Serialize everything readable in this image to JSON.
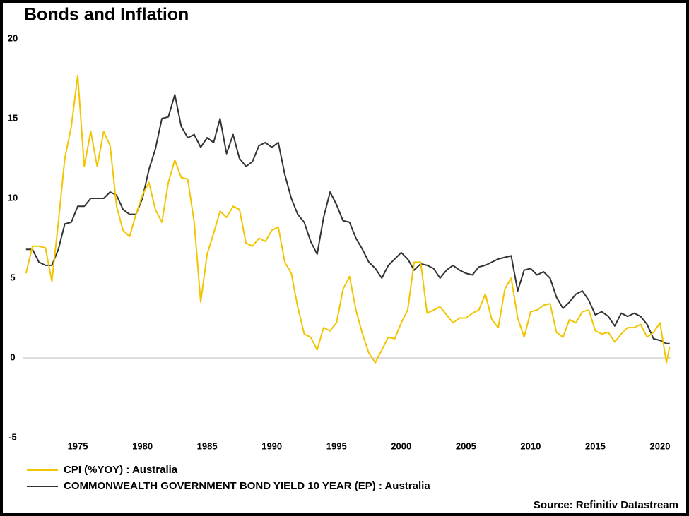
{
  "chart_data": {
    "type": "line",
    "title": "Bonds and Inflation",
    "source": "Source: Refinitiv Datastream",
    "x": [
      1971.0,
      1971.5,
      1972.0,
      1972.5,
      1973.0,
      1973.5,
      1974.0,
      1974.5,
      1975.0,
      1975.5,
      1976.0,
      1976.5,
      1977.0,
      1977.5,
      1978.0,
      1978.5,
      1979.0,
      1979.5,
      1980.0,
      1980.5,
      1981.0,
      1981.5,
      1982.0,
      1982.5,
      1983.0,
      1983.5,
      1984.0,
      1984.5,
      1985.0,
      1985.5,
      1986.0,
      1986.5,
      1987.0,
      1987.5,
      1988.0,
      1988.5,
      1989.0,
      1989.5,
      1990.0,
      1990.5,
      1991.0,
      1991.5,
      1992.0,
      1992.5,
      1993.0,
      1993.5,
      1994.0,
      1994.5,
      1995.0,
      1995.5,
      1996.0,
      1996.5,
      1997.0,
      1997.5,
      1998.0,
      1998.5,
      1999.0,
      1999.5,
      2000.0,
      2000.5,
      2001.0,
      2001.5,
      2002.0,
      2002.5,
      2003.0,
      2003.5,
      2004.0,
      2004.5,
      2005.0,
      2005.5,
      2006.0,
      2006.5,
      2007.0,
      2007.5,
      2008.0,
      2008.5,
      2009.0,
      2009.5,
      2010.0,
      2010.5,
      2011.0,
      2011.5,
      2012.0,
      2012.5,
      2013.0,
      2013.5,
      2014.0,
      2014.5,
      2015.0,
      2015.5,
      2016.0,
      2016.5,
      2017.0,
      2017.5,
      2018.0,
      2018.5,
      2019.0,
      2019.5,
      2020.0,
      2020.5,
      2020.75
    ],
    "series": [
      {
        "name": "CPI (%YOY) : Australia",
        "color": "#f2c500",
        "values": [
          5.3,
          7.0,
          7.0,
          6.9,
          4.8,
          8.5,
          12.5,
          14.5,
          17.7,
          12.0,
          14.2,
          12.0,
          14.2,
          13.3,
          9.5,
          8.0,
          7.6,
          9.0,
          10.2,
          11.0,
          9.3,
          8.5,
          11.0,
          12.4,
          11.3,
          11.2,
          8.5,
          3.5,
          6.5,
          7.8,
          9.2,
          8.8,
          9.5,
          9.3,
          7.2,
          7.0,
          7.5,
          7.3,
          8.0,
          8.2,
          6.0,
          5.3,
          3.2,
          1.5,
          1.3,
          0.5,
          1.9,
          1.7,
          2.2,
          4.3,
          5.1,
          3.0,
          1.5,
          0.3,
          -0.3,
          0.5,
          1.3,
          1.2,
          2.2,
          3.0,
          6.0,
          6.0,
          2.8,
          3.0,
          3.2,
          2.7,
          2.2,
          2.5,
          2.5,
          2.8,
          3.0,
          4.0,
          2.4,
          1.9,
          4.3,
          5.0,
          2.5,
          1.3,
          2.9,
          3.0,
          3.3,
          3.4,
          1.6,
          1.3,
          2.4,
          2.2,
          2.9,
          3.0,
          1.7,
          1.5,
          1.6,
          1.0,
          1.5,
          1.9,
          1.9,
          2.1,
          1.3,
          1.6,
          2.2,
          -0.3,
          0.7
        ]
      },
      {
        "name": "COMMONWEALTH GOVERNMENT BOND YIELD 10 YEAR (EP) : Australia",
        "color": "#333333",
        "values": [
          6.8,
          6.8,
          6.0,
          5.8,
          5.8,
          6.8,
          8.4,
          8.5,
          9.5,
          9.5,
          10.0,
          10.0,
          10.0,
          10.4,
          10.2,
          9.3,
          9.0,
          9.0,
          10.0,
          11.8,
          13.1,
          15.0,
          15.1,
          16.5,
          14.5,
          13.8,
          14.0,
          13.2,
          13.8,
          13.5,
          15.0,
          12.8,
          14.0,
          12.5,
          12.0,
          12.3,
          13.3,
          13.5,
          13.2,
          13.5,
          11.5,
          10.0,
          9.0,
          8.5,
          7.3,
          6.5,
          8.8,
          10.4,
          9.6,
          8.6,
          8.5,
          7.5,
          6.8,
          6.0,
          5.6,
          5.0,
          5.8,
          6.2,
          6.6,
          6.2,
          5.5,
          5.9,
          5.8,
          5.6,
          5.0,
          5.5,
          5.8,
          5.5,
          5.3,
          5.2,
          5.7,
          5.8,
          6.0,
          6.2,
          6.3,
          6.4,
          4.2,
          5.5,
          5.6,
          5.2,
          5.4,
          5.0,
          3.8,
          3.1,
          3.5,
          4.0,
          4.2,
          3.6,
          2.7,
          2.9,
          2.6,
          2.0,
          2.8,
          2.6,
          2.8,
          2.6,
          2.1,
          1.2,
          1.1,
          0.9,
          0.9
        ]
      }
    ],
    "xlim": [
      1971,
      2021
    ],
    "xticks": [
      1975,
      1980,
      1985,
      1990,
      1995,
      2000,
      2005,
      2010,
      2015,
      2020
    ],
    "ylim": [
      -5,
      20
    ],
    "yticks": [
      -5,
      0,
      5,
      10,
      15,
      20
    ],
    "zero_line": true,
    "legend": "bottom"
  }
}
